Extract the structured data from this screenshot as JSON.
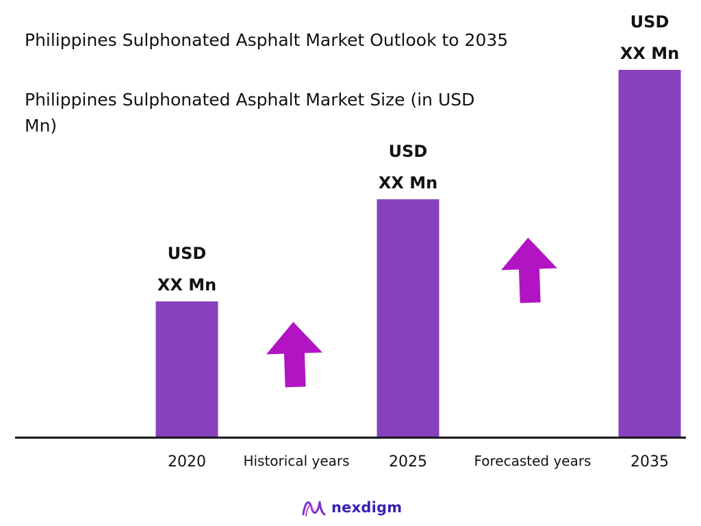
{
  "title": "Philippines Sulphonated Asphalt Market Outlook to 2035",
  "subtitle": "Philippines Sulphonated Asphalt Market Size (in USD Mn)",
  "chart_data": {
    "type": "bar",
    "categories": [
      "2020",
      "2025",
      "2035"
    ],
    "values": [
      1.0,
      1.75,
      2.7
    ],
    "data_labels": [
      [
        "USD",
        "XX Mn"
      ],
      [
        "USD",
        "XX Mn"
      ],
      [
        "USD",
        "XX Mn"
      ]
    ],
    "period_labels": [
      "Historical years",
      "Forecasted years"
    ],
    "ylim": [
      0,
      2.7
    ],
    "grid": false,
    "legend": "none",
    "bar_color": "#8741bd",
    "arrow_color": "#b214c4"
  },
  "logo": {
    "text": "nexdigm",
    "color": "#3a1fb2"
  }
}
